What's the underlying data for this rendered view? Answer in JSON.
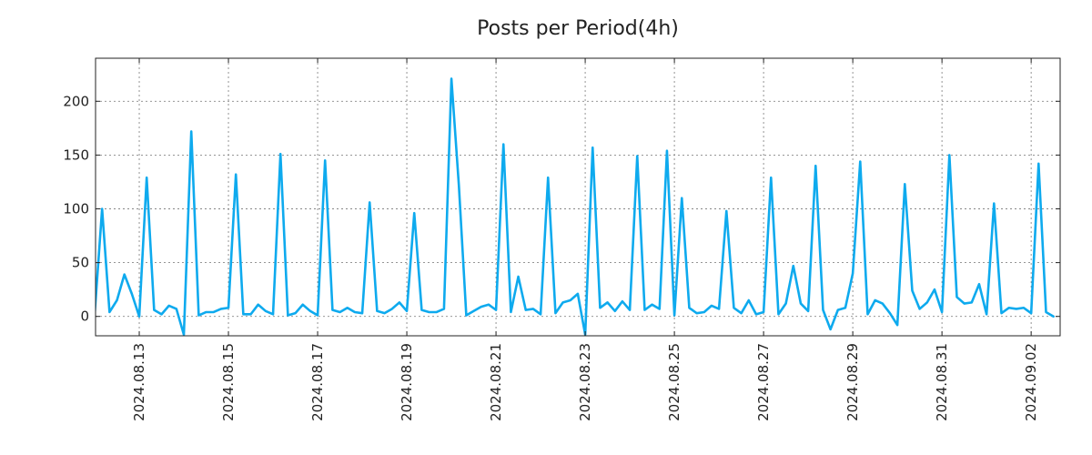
{
  "chart_data": {
    "type": "line",
    "title": "Posts per Period(4h)",
    "xlabel": "",
    "ylabel": "",
    "ylim": [
      -18,
      240
    ],
    "yticks": [
      0,
      50,
      100,
      150,
      200
    ],
    "grid": true,
    "x_start_date": "2024.08.11",
    "x_step_days": 0.1666667,
    "x_range_days": [
      1.02,
      22.65
    ],
    "xtick_days": [
      2,
      4,
      6,
      8,
      10,
      12,
      14,
      16,
      18,
      20,
      22
    ],
    "xtick_labels": [
      "2024.08.13",
      "2024.08.15",
      "2024.08.17",
      "2024.08.19",
      "2024.08.21",
      "2024.08.23",
      "2024.08.25",
      "2024.08.27",
      "2024.08.29",
      "2024.08.31",
      "2024.09.02"
    ],
    "series": [
      {
        "name": "Posts",
        "color": "#0eaaee",
        "start_day": 1.0,
        "values": [
          2,
          100,
          4,
          15,
          39,
          21,
          0,
          129,
          6,
          2,
          10,
          7,
          -17,
          172,
          1,
          4,
          4,
          7,
          8,
          132,
          2,
          2,
          11,
          5,
          2,
          151,
          1,
          3,
          11,
          5,
          1,
          145,
          6,
          4,
          8,
          4,
          3,
          106,
          5,
          3,
          7,
          13,
          5,
          96,
          6,
          4,
          4,
          7,
          221,
          122,
          1,
          5,
          9,
          11,
          6,
          160,
          4,
          37,
          6,
          7,
          2,
          129,
          3,
          13,
          15,
          21,
          -17,
          157,
          8,
          13,
          5,
          14,
          6,
          149,
          6,
          11,
          7,
          154,
          1,
          110,
          8,
          3,
          4,
          10,
          7,
          98,
          8,
          3,
          15,
          2,
          4,
          129,
          2,
          12,
          47,
          12,
          5,
          140,
          6,
          -12,
          6,
          8,
          40,
          144,
          2,
          15,
          12,
          3,
          -8,
          123,
          24,
          7,
          13,
          25,
          4,
          150,
          18,
          12,
          13,
          30,
          2,
          105,
          3,
          8,
          7,
          8,
          3,
          142,
          4,
          0
        ]
      }
    ]
  }
}
